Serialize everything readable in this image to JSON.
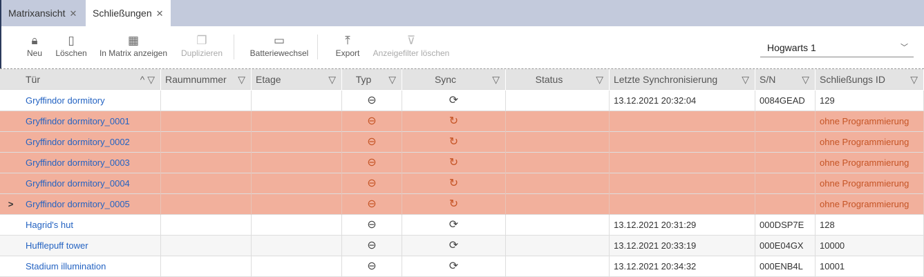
{
  "tabs": [
    {
      "label": "Matrixansicht",
      "active": false
    },
    {
      "label": "Schließungen",
      "active": true
    }
  ],
  "toolbar": {
    "new": "Neu",
    "delete": "Löschen",
    "matrix": "In Matrix anzeigen",
    "duplicate": "Duplizieren",
    "battery": "Batteriewechsel",
    "export": "Export",
    "clear_filter": "Anzeigefilter löschen"
  },
  "location": {
    "selected": "Hogwarts 1"
  },
  "columns": [
    "Tür",
    "Raumnummer",
    "Etage",
    "Typ",
    "Sync",
    "Status",
    "Letzte Synchronisierung",
    "S/N",
    "Schließungs ID"
  ],
  "colors": {
    "error_row": "#f2b09c",
    "link": "#2463c2",
    "error_text": "#c55425"
  },
  "rows": [
    {
      "door": "Gryffindor dormitory",
      "sync": "13.12.2021 20:32:04",
      "sn": "0084GEAD",
      "id": "129",
      "state": "ok"
    },
    {
      "door": "Gryffindor dormitory_0001",
      "sync": "",
      "sn": "",
      "id": "ohne Programmierung",
      "state": "error"
    },
    {
      "door": "Gryffindor dormitory_0002",
      "sync": "",
      "sn": "",
      "id": "ohne Programmierung",
      "state": "error"
    },
    {
      "door": "Gryffindor dormitory_0003",
      "sync": "",
      "sn": "",
      "id": "ohne Programmierung",
      "state": "error"
    },
    {
      "door": "Gryffindor dormitory_0004",
      "sync": "",
      "sn": "",
      "id": "ohne Programmierung",
      "state": "error"
    },
    {
      "door": "Gryffindor dormitory_0005",
      "sync": "",
      "sn": "",
      "id": "ohne Programmierung",
      "state": "error",
      "current": true
    },
    {
      "door": "Hagrid's hut",
      "sync": "13.12.2021 20:31:29",
      "sn": "000DSP7E",
      "id": "128",
      "state": "ok"
    },
    {
      "door": "Hufflepuff tower",
      "sync": "13.12.2021 20:33:19",
      "sn": "000E04GX",
      "id": "10000",
      "state": "ok"
    },
    {
      "door": "Stadium illumination",
      "sync": "13.12.2021 20:34:32",
      "sn": "000ENB4L",
      "id": "10001",
      "state": "ok"
    }
  ]
}
